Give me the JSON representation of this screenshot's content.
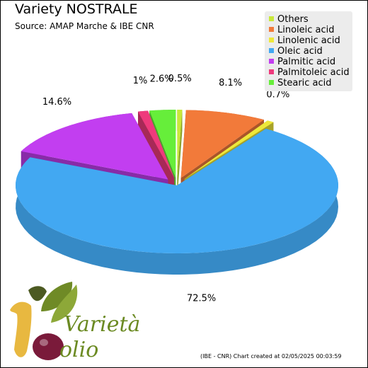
{
  "chart_data": {
    "type": "pie",
    "title": "Variety NOSTRALE",
    "subtitle": "Source: AMAP Marche & IBE CNR",
    "legend_position": "top-right",
    "slices": [
      {
        "name": "Others",
        "value": 0.5,
        "label": "0.5%",
        "color": "#c8e83a"
      },
      {
        "name": "Linoleic acid",
        "value": 8.1,
        "label": "8.1%",
        "color": "#f27a3a"
      },
      {
        "name": "Linolenic acid",
        "value": 0.7,
        "label": "0.7%",
        "color": "#eee83a"
      },
      {
        "name": "Oleic acid",
        "value": 72.5,
        "label": "72.5%",
        "color": "#42a8f2"
      },
      {
        "name": "Palmitic acid",
        "value": 14.6,
        "label": "14.6%",
        "color": "#c23ef0"
      },
      {
        "name": "Palmitoleic acid",
        "value": 1.0,
        "label": "1%",
        "color": "#ee3a7c"
      },
      {
        "name": "Stearic acid",
        "value": 2.6,
        "label": "2.6%",
        "color": "#66ee3a"
      }
    ]
  },
  "footer": "(IBE - CNR) Chart created at 02/05/2025 00:03:59",
  "logo": {
    "word1": "Varietà",
    "word2": "olio",
    "numeral": "1"
  }
}
